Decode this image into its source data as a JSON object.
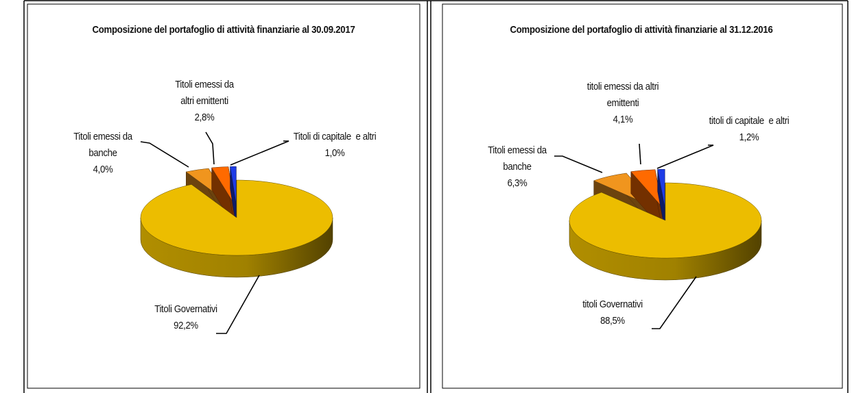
{
  "chart_data": [
    {
      "type": "pie",
      "title": "Composizione del portafoglio di attività finanziarie al 30.09.2017",
      "categories": [
        "Titoli Governativi",
        "Titoli emessi da banche",
        "Titoli emessi da altri emittenti",
        "Titoli di capitale  e altri"
      ],
      "values": [
        92.2,
        4.0,
        2.8,
        1.0
      ],
      "value_labels": [
        "92,2%",
        "4,0%",
        "2,8%",
        "1,0%"
      ],
      "colors": [
        "#ecbd00",
        "#f0951e",
        "#ff6a00",
        "#1e3ce6"
      ]
    },
    {
      "type": "pie",
      "title": "Composizione del portafoglio di attività finanziarie al 31.12.2016",
      "categories": [
        "titoli Governativi",
        "Titoli emessi da banche",
        "titoli emessi da altri emittenti",
        "titoli di capitale  e altri"
      ],
      "values": [
        88.5,
        6.3,
        4.1,
        1.2
      ],
      "value_labels": [
        "88,5%",
        "6,3%",
        "4,1%",
        "1,2%"
      ],
      "colors": [
        "#ecbd00",
        "#f0951e",
        "#ff6a00",
        "#1e3ce6"
      ]
    }
  ]
}
